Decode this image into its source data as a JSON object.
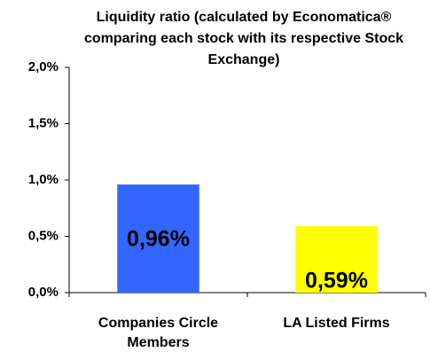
{
  "chart_data": {
    "type": "bar",
    "title": "Liquidity ratio (calculated by Economatica® comparing each stock with its respective Stock Exchange)",
    "categories": [
      "Companies Circle Members",
      "LA Listed Firms"
    ],
    "values": [
      0.96,
      0.59
    ],
    "value_labels": [
      "0,96%",
      "0,59%"
    ],
    "colors": [
      "#3366ff",
      "#ffff00"
    ],
    "ylim": [
      0,
      2
    ],
    "yticks": [
      {
        "value": 0,
        "label": "0,0%"
      },
      {
        "value": 0.5,
        "label": "0,5%"
      },
      {
        "value": 1,
        "label": "1,0%"
      },
      {
        "value": 1.5,
        "label": "1,5%"
      },
      {
        "value": 2,
        "label": "2,0%"
      }
    ]
  }
}
